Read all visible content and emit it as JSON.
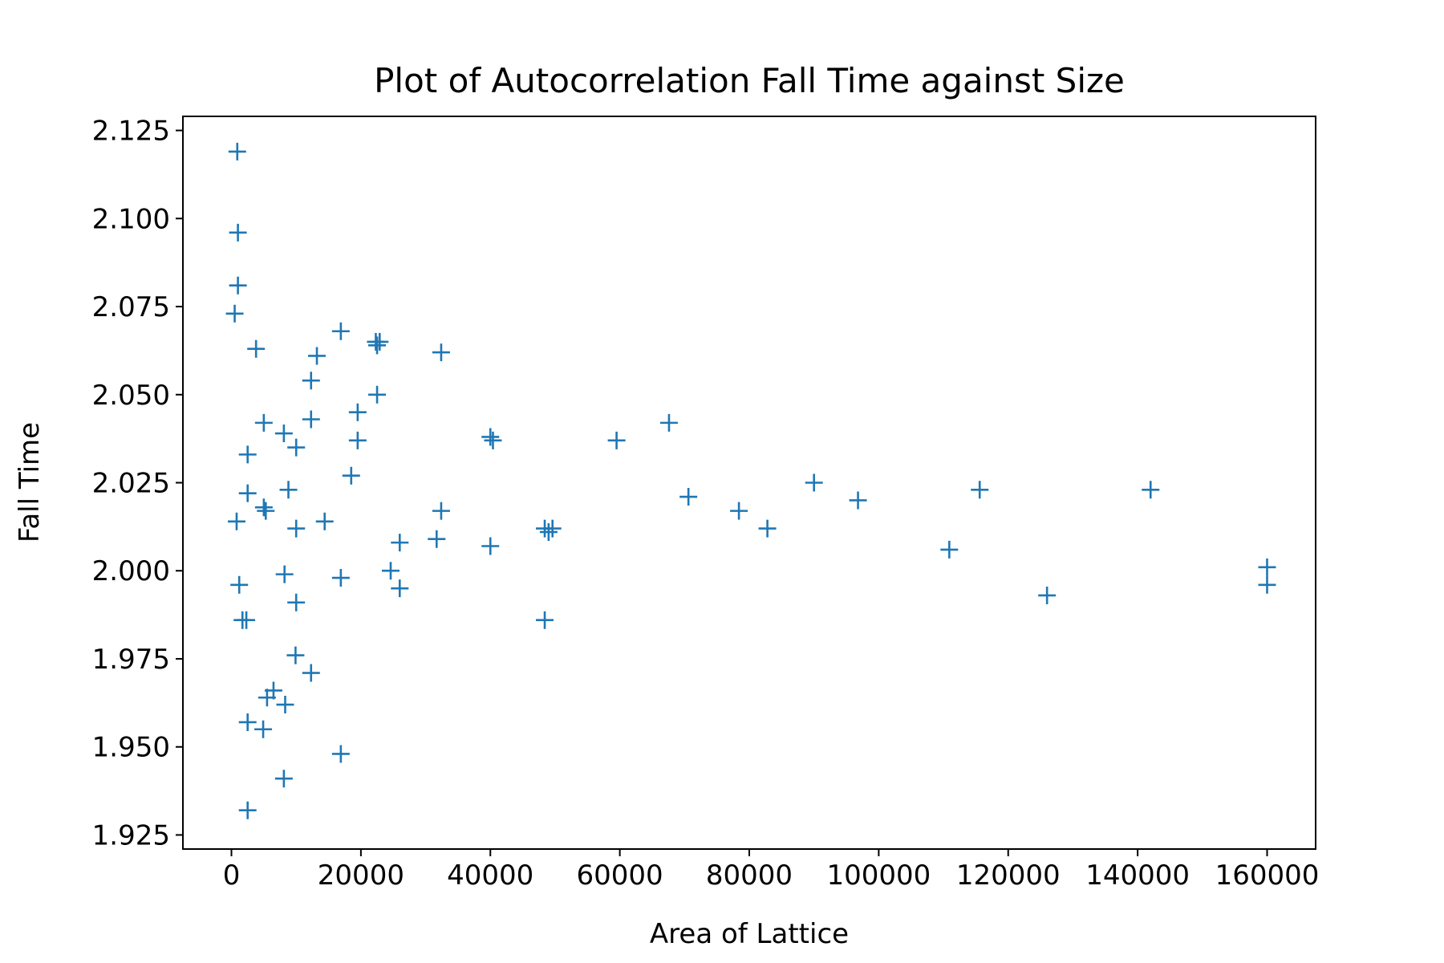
{
  "chart_data": {
    "type": "scatter",
    "title": "Plot of Autocorrelation Fall Time against Size",
    "xlabel": "Area of Lattice",
    "ylabel": "Fall Time",
    "xlim": [
      -7500,
      167500
    ],
    "ylim": [
      1.921,
      2.129
    ],
    "xticks": [
      0,
      20000,
      40000,
      60000,
      80000,
      100000,
      120000,
      140000,
      160000
    ],
    "yticks": [
      1.925,
      1.95,
      1.975,
      2.0,
      2.025,
      2.05,
      2.075,
      2.1,
      2.125
    ],
    "xtick_labels": [
      "0",
      "20000",
      "40000",
      "60000",
      "80000",
      "100000",
      "120000",
      "140000",
      "160000"
    ],
    "ytick_labels": [
      "1.925",
      "1.950",
      "1.975",
      "2.000",
      "2.025",
      "2.050",
      "2.075",
      "2.100",
      "2.125"
    ],
    "grid": false,
    "marker": "+",
    "color": "#1f77b4",
    "series": [
      {
        "points": [
          [
            900,
            2.119
          ],
          [
            1000,
            2.096
          ],
          [
            1000,
            2.081
          ],
          [
            500,
            2.073
          ],
          [
            800,
            2.014
          ],
          [
            1200,
            1.996
          ],
          [
            1700,
            1.986
          ],
          [
            2300,
            1.986
          ],
          [
            2500,
            2.033
          ],
          [
            2500,
            2.022
          ],
          [
            2500,
            1.957
          ],
          [
            2500,
            1.932
          ],
          [
            3800,
            2.063
          ],
          [
            5000,
            2.042
          ],
          [
            5000,
            2.018
          ],
          [
            5300,
            2.017
          ],
          [
            5500,
            1.964
          ],
          [
            4900,
            1.955
          ],
          [
            6500,
            1.966
          ],
          [
            8100,
            2.039
          ],
          [
            8800,
            2.023
          ],
          [
            8200,
            1.999
          ],
          [
            8300,
            1.962
          ],
          [
            8100,
            1.941
          ],
          [
            10000,
            2.035
          ],
          [
            10000,
            2.012
          ],
          [
            10000,
            1.991
          ],
          [
            9900,
            1.976
          ],
          [
            12300,
            2.054
          ],
          [
            12300,
            2.043
          ],
          [
            12300,
            1.971
          ],
          [
            13200,
            2.061
          ],
          [
            14400,
            2.014
          ],
          [
            16900,
            2.068
          ],
          [
            16900,
            1.998
          ],
          [
            16900,
            1.948
          ],
          [
            18500,
            2.027
          ],
          [
            19500,
            2.045
          ],
          [
            19500,
            2.037
          ],
          [
            22300,
            2.065
          ],
          [
            22500,
            2.064
          ],
          [
            22900,
            2.065
          ],
          [
            22500,
            2.05
          ],
          [
            24600,
            2.0
          ],
          [
            26000,
            2.008
          ],
          [
            26000,
            1.995
          ],
          [
            31700,
            2.009
          ],
          [
            32400,
            2.062
          ],
          [
            32400,
            2.017
          ],
          [
            40000,
            2.038
          ],
          [
            40400,
            2.037
          ],
          [
            40000,
            2.007
          ],
          [
            48400,
            2.012
          ],
          [
            48400,
            1.986
          ],
          [
            49000,
            2.011
          ],
          [
            49600,
            2.012
          ],
          [
            59500,
            2.037
          ],
          [
            67600,
            2.042
          ],
          [
            70600,
            2.021
          ],
          [
            78400,
            2.017
          ],
          [
            82800,
            2.012
          ],
          [
            90000,
            2.025
          ],
          [
            96800,
            2.02
          ],
          [
            110900,
            2.006
          ],
          [
            115600,
            2.023
          ],
          [
            126000,
            1.993
          ],
          [
            142000,
            2.023
          ],
          [
            160000,
            2.001
          ],
          [
            160000,
            1.996
          ]
        ]
      }
    ]
  }
}
